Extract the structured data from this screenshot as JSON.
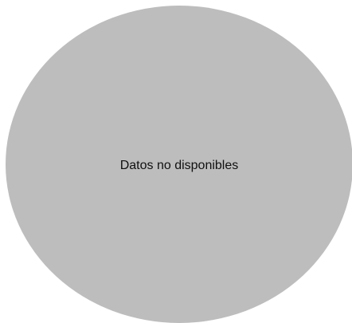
{
  "chart_data": {
    "type": "pie",
    "title": "",
    "message": "Datos no disponibles",
    "values": [],
    "labels": [],
    "placeholder_color": "#BDBDBD",
    "text_color": "#111111"
  }
}
